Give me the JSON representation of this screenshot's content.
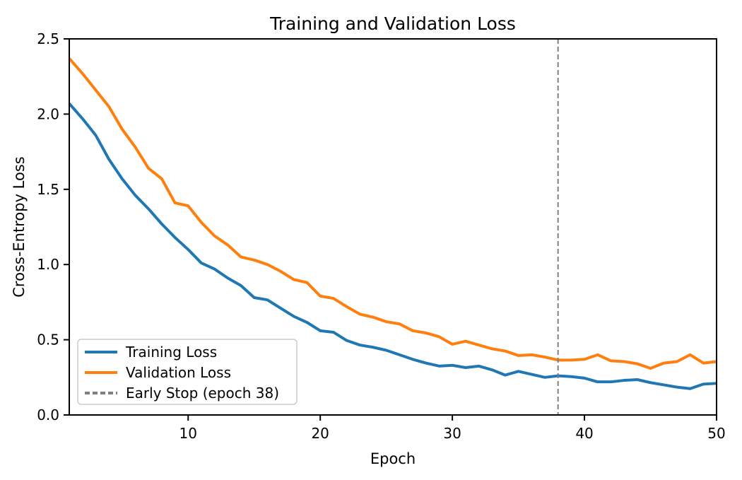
{
  "chart_data": {
    "type": "line",
    "title": "Training and Validation Loss",
    "xlabel": "Epoch",
    "ylabel": "Cross-Entropy Loss",
    "xlim": [
      1,
      50
    ],
    "ylim": [
      0,
      2.5
    ],
    "xticks": [
      10,
      20,
      30,
      40,
      50
    ],
    "yticks": [
      0,
      0.5,
      1,
      1.5,
      2,
      2.5
    ],
    "grid": false,
    "legend_position": "lower left",
    "epochs": [
      1,
      2,
      3,
      4,
      5,
      6,
      7,
      8,
      9,
      10,
      11,
      12,
      13,
      14,
      15,
      16,
      17,
      18,
      19,
      20,
      21,
      22,
      23,
      24,
      25,
      26,
      27,
      28,
      29,
      30,
      31,
      32,
      33,
      34,
      35,
      36,
      37,
      38,
      39,
      40,
      41,
      42,
      43,
      44,
      45,
      46,
      47,
      48,
      49,
      50
    ],
    "series": [
      {
        "name": "Training Loss",
        "color": "#1f77b4",
        "values": [
          2.07,
          1.97,
          1.86,
          1.7,
          1.57,
          1.46,
          1.37,
          1.27,
          1.18,
          1.1,
          1.01,
          0.97,
          0.91,
          0.86,
          0.78,
          0.765,
          0.71,
          0.655,
          0.615,
          0.56,
          0.55,
          0.495,
          0.465,
          0.45,
          0.43,
          0.4,
          0.37,
          0.345,
          0.325,
          0.33,
          0.315,
          0.325,
          0.3,
          0.265,
          0.29,
          0.27,
          0.25,
          0.26,
          0.255,
          0.245,
          0.22,
          0.22,
          0.23,
          0.235,
          0.215,
          0.2,
          0.185,
          0.175,
          0.205,
          0.21
        ]
      },
      {
        "name": "Validation Loss",
        "color": "#ff7f0e",
        "values": [
          2.37,
          2.27,
          2.16,
          2.05,
          1.9,
          1.78,
          1.64,
          1.57,
          1.41,
          1.39,
          1.28,
          1.19,
          1.13,
          1.05,
          1.03,
          1.0,
          0.955,
          0.9,
          0.88,
          0.79,
          0.775,
          0.72,
          0.67,
          0.65,
          0.62,
          0.605,
          0.56,
          0.545,
          0.52,
          0.47,
          0.49,
          0.465,
          0.44,
          0.425,
          0.395,
          0.4,
          0.385,
          0.365,
          0.365,
          0.37,
          0.4,
          0.36,
          0.355,
          0.34,
          0.31,
          0.345,
          0.355,
          0.4,
          0.345,
          0.355
        ]
      }
    ],
    "vline": {
      "x": 38,
      "label": "Early Stop (epoch 38)",
      "color": "#808080",
      "style": "dashed"
    }
  }
}
